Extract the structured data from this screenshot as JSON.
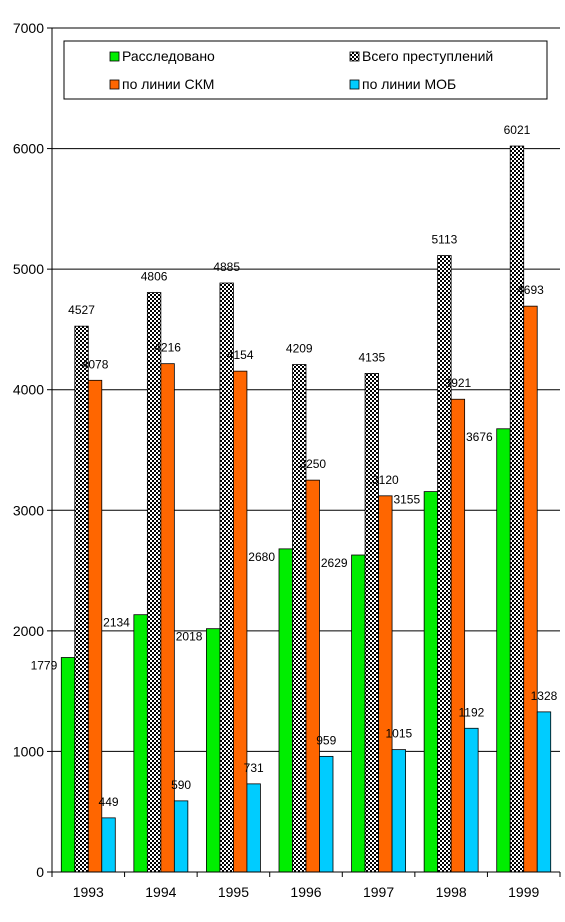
{
  "chart_data": {
    "type": "bar",
    "categories": [
      "1993",
      "1994",
      "1995",
      "1996",
      "1997",
      "1998",
      "1999"
    ],
    "series": [
      {
        "name": "Расследовано",
        "color": "#00ee00",
        "pattern": "solid",
        "values": [
          1779,
          2134,
          2018,
          2680,
          2629,
          3155,
          3676
        ]
      },
      {
        "name": "Всего преступлений",
        "color": "#808080",
        "pattern": "checker",
        "values": [
          4527,
          4806,
          4885,
          4209,
          4135,
          5113,
          6021
        ]
      },
      {
        "name": "по линии СКМ",
        "color": "#ff6600",
        "pattern": "solid",
        "values": [
          4078,
          4216,
          4154,
          3250,
          3120,
          3921,
          4693
        ]
      },
      {
        "name": "по линии МОБ",
        "color": "#00ccff",
        "pattern": "solid",
        "values": [
          449,
          590,
          731,
          959,
          1015,
          1192,
          1328
        ]
      }
    ],
    "ylim": [
      0,
      7000
    ],
    "yticks": [
      0,
      1000,
      2000,
      3000,
      4000,
      5000,
      6000,
      7000
    ],
    "grid": true,
    "legend_position": "top"
  }
}
